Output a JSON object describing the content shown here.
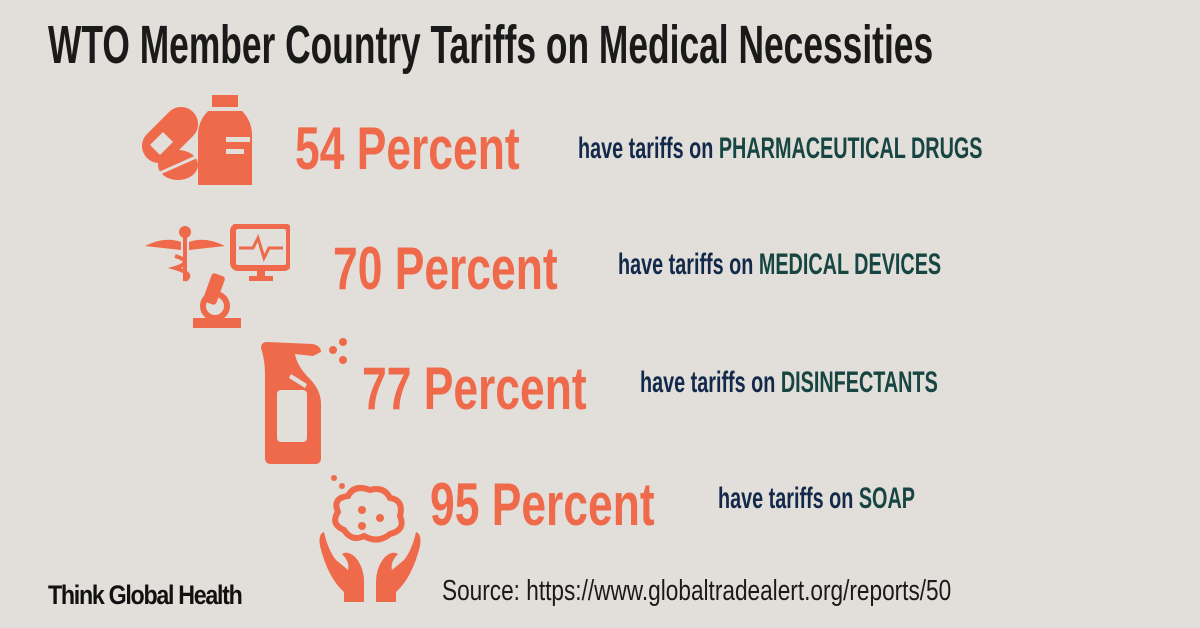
{
  "title": "WTO Member Country Tariffs on Medical Necessities",
  "rows": [
    {
      "percent": "54 Percent",
      "lead": "have tariffs on",
      "category": "PHARMACEUTICAL DRUGS",
      "icon": "pills-bottle-icon"
    },
    {
      "percent": "70 Percent",
      "lead": "have tariffs on",
      "category": "MEDICAL DEVICES",
      "icon": "caduceus-monitor-microscope-icon"
    },
    {
      "percent": "77 Percent",
      "lead": "have tariffs on",
      "category": "DISINFECTANTS",
      "icon": "spray-bottle-icon"
    },
    {
      "percent": "95 Percent",
      "lead": "have tariffs on",
      "category": "SOAP",
      "icon": "soap-hands-icon"
    }
  ],
  "logo": "Think Global Health",
  "source": "Source: https://www.globaltradealert.org/reports/50",
  "colors": {
    "accent": "#ee6a4a",
    "navy": "#13294b",
    "teal": "#174542",
    "background": "#e2ded9"
  }
}
